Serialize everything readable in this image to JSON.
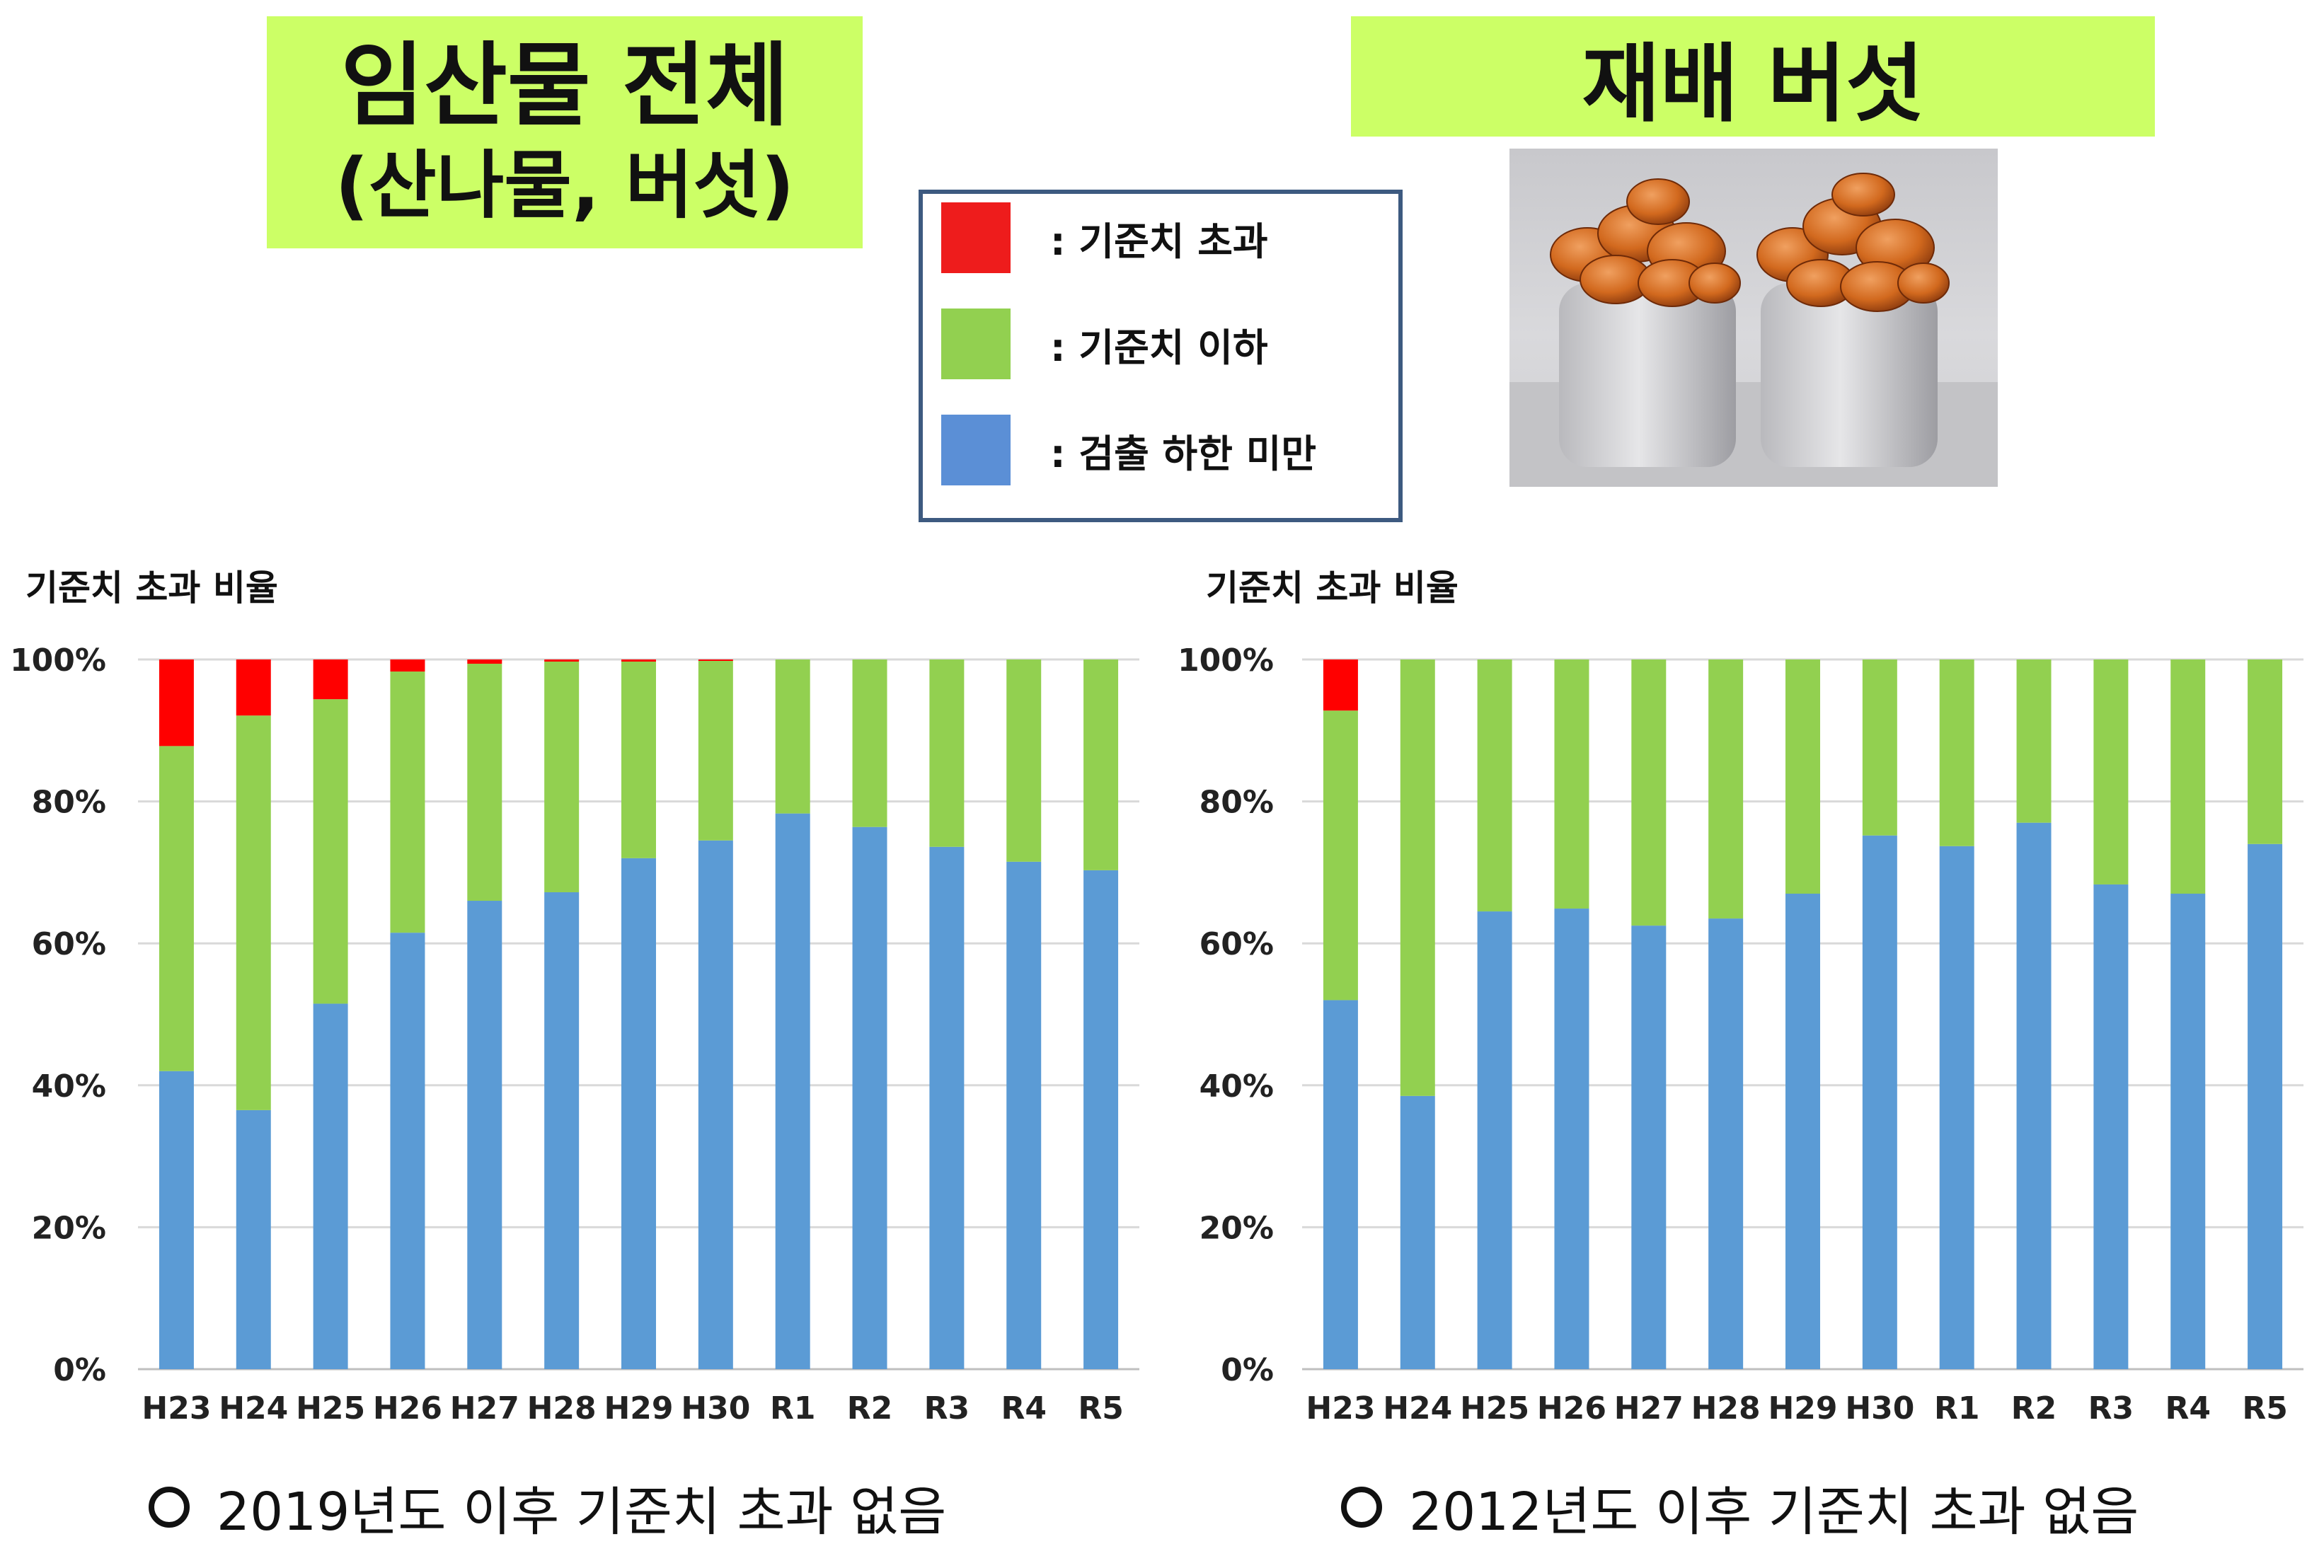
{
  "left_title": {
    "line1": "임산물 전체",
    "line2": "(산나물, 버섯)"
  },
  "right_title": "재배 버섯",
  "legend": [
    {
      "label": ": 기준치 초과",
      "color": "#ee1c1c"
    },
    {
      "label": ": 기준치 이하",
      "color": "#92d050"
    },
    {
      "label": ": 검출 하한 미만",
      "color": "#5b8fd6"
    }
  ],
  "photo": {
    "subject": "cultivated mushrooms in two bottles"
  },
  "chart_data": [
    {
      "type": "bar",
      "stacked": true,
      "title": "기준치 초과 비율",
      "ylim": [
        0,
        100
      ],
      "yticks": [
        "0%",
        "20%",
        "40%",
        "60%",
        "80%",
        "100%"
      ],
      "grid": true,
      "categories": [
        "H23",
        "H24",
        "H25",
        "H26",
        "H27",
        "H28",
        "H29",
        "H30",
        "R1",
        "R2",
        "R3",
        "R4",
        "R5"
      ],
      "series": [
        {
          "name": ": 검출 하한 미만",
          "color": "#5b9bd5",
          "values": [
            42,
            36.5,
            51.5,
            61.5,
            66,
            67.2,
            72,
            74.5,
            78.3,
            76.4,
            73.6,
            71.5,
            70.3
          ]
        },
        {
          "name": ": 기준치 이하",
          "color": "#92d050",
          "values": [
            45.8,
            55.6,
            42.9,
            36.8,
            33.4,
            32.5,
            27.7,
            25.3,
            21.7,
            23.6,
            26.4,
            28.5,
            29.7
          ]
        },
        {
          "name": ": 기준치 초과",
          "color": "#ff0000",
          "values": [
            12.2,
            7.9,
            5.6,
            1.7,
            0.6,
            0.3,
            0.3,
            0.2,
            0,
            0,
            0,
            0,
            0
          ]
        }
      ],
      "footnote": "2019년도 이후 기준치 초과 없음"
    },
    {
      "type": "bar",
      "stacked": true,
      "title": "기준치 초과 비율",
      "ylim": [
        0,
        100
      ],
      "yticks": [
        "0%",
        "20%",
        "40%",
        "60%",
        "80%",
        "100%"
      ],
      "grid": true,
      "categories": [
        "H23",
        "H24",
        "H25",
        "H26",
        "H27",
        "H28",
        "H29",
        "H30",
        "R1",
        "R2",
        "R3",
        "R4",
        "R5"
      ],
      "series": [
        {
          "name": ": 검출 하한 미만",
          "color": "#5b9bd5",
          "values": [
            52,
            38.5,
            64.5,
            64.9,
            62.5,
            63.5,
            67,
            75.2,
            73.7,
            77,
            68.3,
            67,
            74
          ]
        },
        {
          "name": ": 기준치 이하",
          "color": "#92d050",
          "values": [
            40.8,
            61.5,
            35.5,
            35.1,
            37.5,
            36.5,
            33,
            24.8,
            26.3,
            23,
            31.7,
            33,
            26
          ]
        },
        {
          "name": ": 기준치 초과",
          "color": "#ff0000",
          "values": [
            7.2,
            0,
            0,
            0,
            0,
            0,
            0,
            0,
            0,
            0,
            0,
            0,
            0
          ]
        }
      ],
      "footnote": "2012년도 이후 기준치 초과 없음"
    }
  ]
}
